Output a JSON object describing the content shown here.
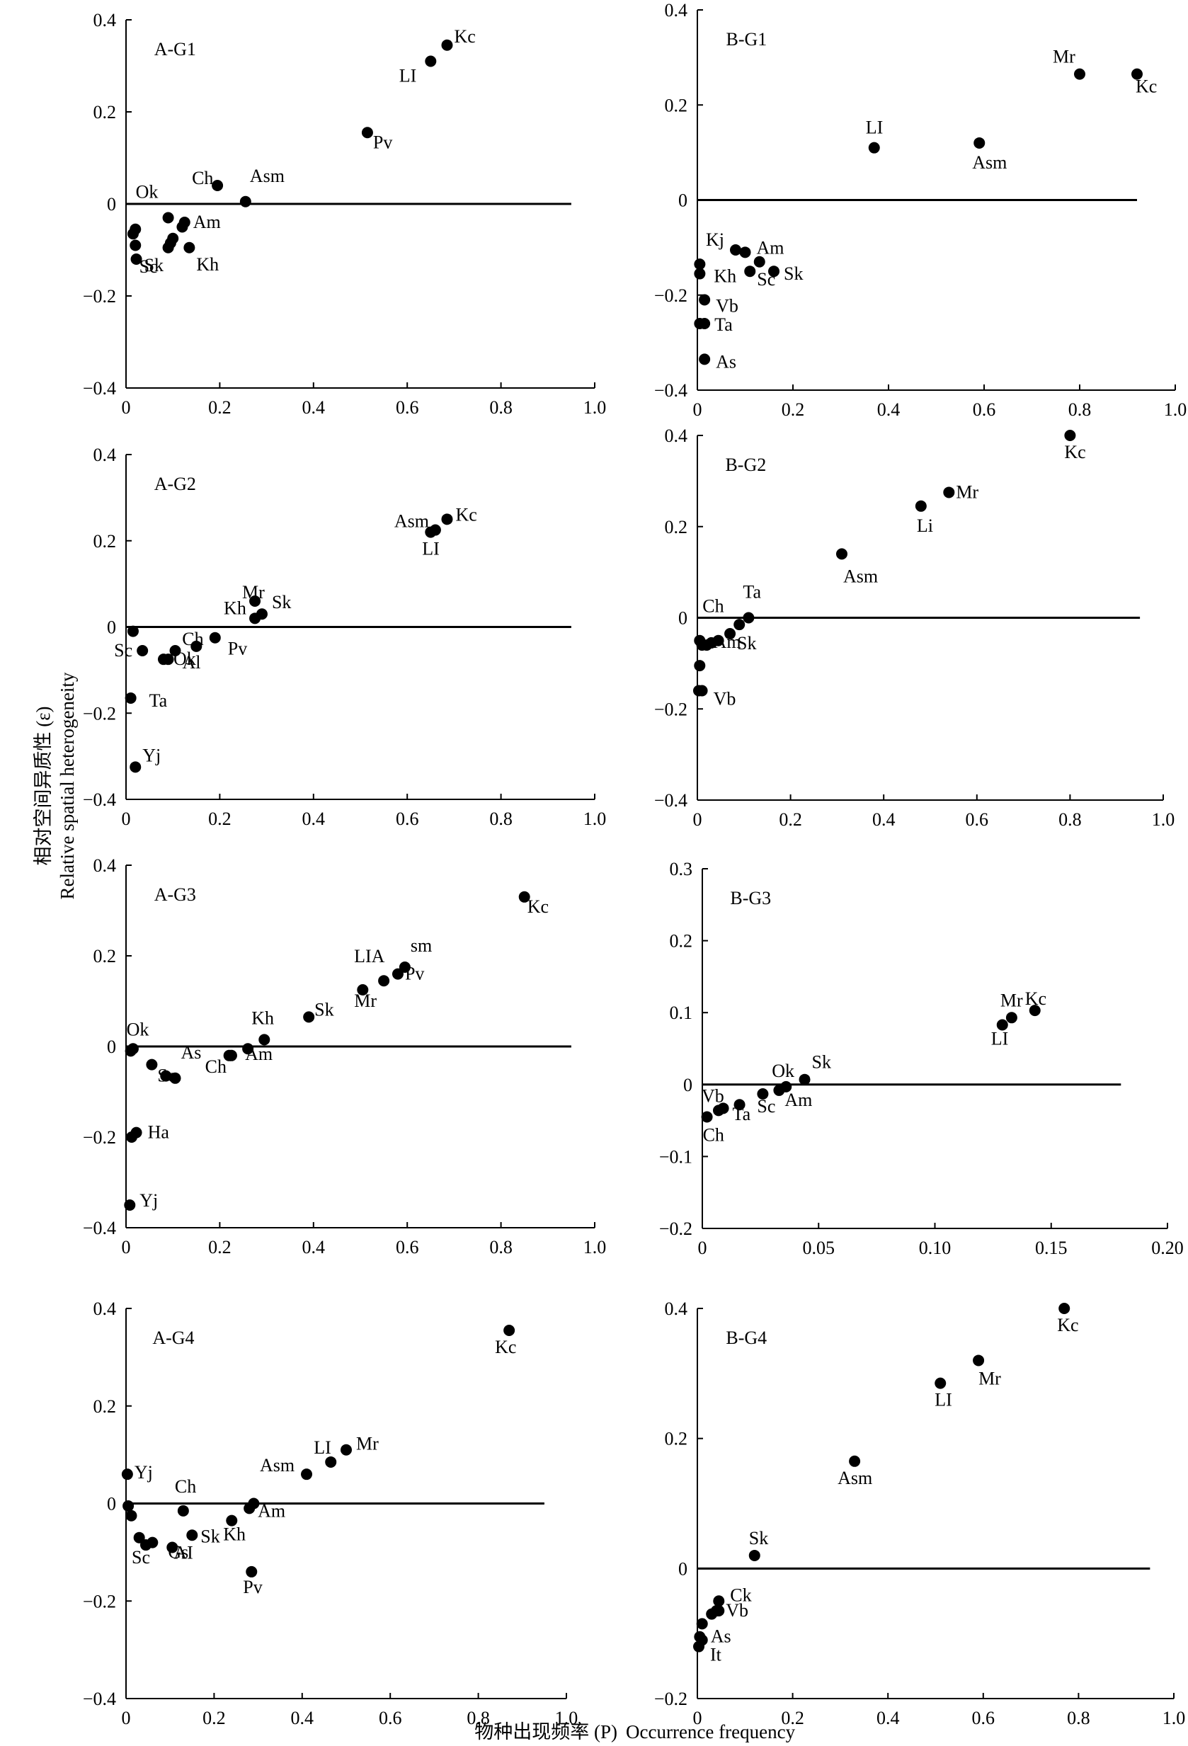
{
  "figure": {
    "ylabel_cn": "相对空间异质性 (ε)",
    "ylabel_en": "Relative spatial heterogeneity",
    "xlabel_cn": "物种出现频率 (P)",
    "xlabel_en": "Occurrence frequency"
  },
  "chart_data": [
    {
      "type": "scatter",
      "title": "A-G1",
      "xlim": [
        0,
        1.0
      ],
      "ylim": [
        -0.4,
        0.4
      ],
      "xticks": [
        0,
        0.2,
        0.4,
        0.6,
        0.8,
        1.0
      ],
      "yticks": [
        -0.4,
        -0.2,
        0,
        0.2,
        0.4
      ],
      "xtick_labels": [
        "0",
        "0.2",
        "0.4",
        "0.6",
        "0.8",
        "1.0"
      ],
      "ytick_labels": [
        "−0.4",
        "−0.2",
        "0",
        "0.2",
        "0.4"
      ],
      "refline": {
        "y": 0,
        "x0": 0,
        "x1": 0.95
      },
      "points": [
        {
          "x": 0.685,
          "y": 0.345,
          "label": "Kc"
        },
        {
          "x": 0.65,
          "y": 0.31,
          "label": "LI"
        },
        {
          "x": 0.515,
          "y": 0.155,
          "label": "Pv"
        },
        {
          "x": 0.195,
          "y": 0.04,
          "label": "Ch"
        },
        {
          "x": 0.255,
          "y": 0.005,
          "label": "Asm"
        },
        {
          "x": 0.09,
          "y": -0.03,
          "label": "Ok"
        },
        {
          "x": 0.125,
          "y": -0.04,
          "label": "Am"
        },
        {
          "x": 0.12,
          "y": -0.05
        },
        {
          "x": 0.02,
          "y": -0.055
        },
        {
          "x": 0.015,
          "y": -0.065
        },
        {
          "x": 0.1,
          "y": -0.075
        },
        {
          "x": 0.095,
          "y": -0.085
        },
        {
          "x": 0.02,
          "y": -0.09
        },
        {
          "x": 0.135,
          "y": -0.095,
          "label": "Kh"
        },
        {
          "x": 0.09,
          "y": -0.095,
          "label": "Sk"
        },
        {
          "x": 0.022,
          "y": -0.12,
          "label": "Sc"
        }
      ]
    },
    {
      "type": "scatter",
      "title": "B-G1",
      "xlim": [
        0,
        1.0
      ],
      "ylim": [
        -0.4,
        0.4
      ],
      "xticks": [
        0,
        0.2,
        0.4,
        0.6,
        0.8,
        1.0
      ],
      "yticks": [
        -0.4,
        -0.2,
        0,
        0.2,
        0.4
      ],
      "xtick_labels": [
        "0",
        "0.2",
        "0.4",
        "0.6",
        "0.8",
        "1.0"
      ],
      "ytick_labels": [
        "−0.4",
        "−0.2",
        "0",
        "0.2",
        "0.4"
      ],
      "refline": {
        "y": 0,
        "x0": 0,
        "x1": 0.92
      },
      "points": [
        {
          "x": 0.8,
          "y": 0.265,
          "label": "Mr"
        },
        {
          "x": 0.92,
          "y": 0.265,
          "label": "Kc"
        },
        {
          "x": 0.59,
          "y": 0.12,
          "label": "Asm"
        },
        {
          "x": 0.37,
          "y": 0.11,
          "label": "LI"
        },
        {
          "x": 0.08,
          "y": -0.105,
          "label": "Kj"
        },
        {
          "x": 0.1,
          "y": -0.11,
          "label": "Am"
        },
        {
          "x": 0.13,
          "y": -0.13
        },
        {
          "x": 0.005,
          "y": -0.135
        },
        {
          "x": 0.005,
          "y": -0.155,
          "label": "Kh"
        },
        {
          "x": 0.11,
          "y": -0.15,
          "label": "Sc"
        },
        {
          "x": 0.16,
          "y": -0.15,
          "label": "Sk"
        },
        {
          "x": 0.015,
          "y": -0.21,
          "label": "Vb"
        },
        {
          "x": 0.005,
          "y": -0.26
        },
        {
          "x": 0.015,
          "y": -0.26,
          "label": "Ta"
        },
        {
          "x": 0.015,
          "y": -0.335,
          "label": "As"
        }
      ]
    },
    {
      "type": "scatter",
      "title": "A-G2",
      "xlim": [
        0,
        1.0
      ],
      "ylim": [
        -0.4,
        0.4
      ],
      "xticks": [
        0,
        0.2,
        0.4,
        0.6,
        0.8,
        1.0
      ],
      "yticks": [
        -0.4,
        -0.2,
        0,
        0.2,
        0.4
      ],
      "xtick_labels": [
        "0",
        "0.2",
        "0.4",
        "0.6",
        "0.8",
        "1.0"
      ],
      "ytick_labels": [
        "−0.4",
        "−0.2",
        "0",
        "0.2",
        "0.4"
      ],
      "refline": {
        "y": 0,
        "x0": 0,
        "x1": 0.95
      },
      "points": [
        {
          "x": 0.685,
          "y": 0.25,
          "label": "Kc"
        },
        {
          "x": 0.66,
          "y": 0.225,
          "label": "Asm"
        },
        {
          "x": 0.65,
          "y": 0.22,
          "label": "LI"
        },
        {
          "x": 0.275,
          "y": 0.06,
          "label": "Mr"
        },
        {
          "x": 0.29,
          "y": 0.03,
          "label": "Sk"
        },
        {
          "x": 0.275,
          "y": 0.02,
          "label": "Kh"
        },
        {
          "x": 0.015,
          "y": -0.01
        },
        {
          "x": 0.19,
          "y": -0.025,
          "label": "Pv"
        },
        {
          "x": 0.15,
          "y": -0.045,
          "label": "Ch"
        },
        {
          "x": 0.105,
          "y": -0.055,
          "label": "Al"
        },
        {
          "x": 0.035,
          "y": -0.055,
          "label": "Sc"
        },
        {
          "x": 0.08,
          "y": -0.075,
          "label": "Ok"
        },
        {
          "x": 0.09,
          "y": -0.075
        },
        {
          "x": 0.01,
          "y": -0.165,
          "label": "Ta"
        },
        {
          "x": 0.02,
          "y": -0.325,
          "label": "Yj"
        }
      ]
    },
    {
      "type": "scatter",
      "title": "B-G2",
      "xlim": [
        0,
        1.0
      ],
      "ylim": [
        -0.4,
        0.4
      ],
      "xticks": [
        0,
        0.2,
        0.4,
        0.6,
        0.8,
        1.0
      ],
      "yticks": [
        -0.4,
        -0.2,
        0,
        0.2,
        0.4
      ],
      "xtick_labels": [
        "0",
        "0.2",
        "0.4",
        "0.6",
        "0.8",
        "1.0"
      ],
      "ytick_labels": [
        "−0.4",
        "−0.2",
        "0",
        "0.2",
        "0.4"
      ],
      "refline": {
        "y": 0,
        "x0": 0,
        "x1": 0.95
      },
      "points": [
        {
          "x": 0.8,
          "y": 0.4,
          "label": "Kc"
        },
        {
          "x": 0.54,
          "y": 0.275,
          "label": "Mr"
        },
        {
          "x": 0.48,
          "y": 0.245,
          "label": "Li"
        },
        {
          "x": 0.31,
          "y": 0.14,
          "label": "Asm"
        },
        {
          "x": 0.11,
          "y": 0.0,
          "label": "Ta"
        },
        {
          "x": 0.09,
          "y": -0.015
        },
        {
          "x": 0.07,
          "y": -0.035,
          "label": "Sk"
        },
        {
          "x": 0.045,
          "y": -0.05
        },
        {
          "x": 0.005,
          "y": -0.05,
          "label": "Ch"
        },
        {
          "x": 0.03,
          "y": -0.055
        },
        {
          "x": 0.02,
          "y": -0.06
        },
        {
          "x": 0.01,
          "y": -0.06,
          "label": "Am"
        },
        {
          "x": 0.005,
          "y": -0.105
        },
        {
          "x": 0.003,
          "y": -0.16
        },
        {
          "x": 0.01,
          "y": -0.16,
          "label": "Vb"
        }
      ]
    },
    {
      "type": "scatter",
      "title": "A-G3",
      "xlim": [
        0,
        1.0
      ],
      "ylim": [
        -0.4,
        0.4
      ],
      "xticks": [
        0,
        0.2,
        0.4,
        0.6,
        0.8,
        1.0
      ],
      "yticks": [
        -0.4,
        -0.2,
        0,
        0.2,
        0.4
      ],
      "xtick_labels": [
        "0",
        "0.2",
        "0.4",
        "0.6",
        "0.8",
        "1.0"
      ],
      "ytick_labels": [
        "−0.4",
        "−0.2",
        "0",
        "0.2",
        "0.4"
      ],
      "refline": {
        "y": 0,
        "x0": 0,
        "x1": 0.95
      },
      "points": [
        {
          "x": 0.85,
          "y": 0.33,
          "label": "Kc"
        },
        {
          "x": 0.595,
          "y": 0.175,
          "label": "sm"
        },
        {
          "x": 0.58,
          "y": 0.16,
          "label": "Pv"
        },
        {
          "x": 0.55,
          "y": 0.145,
          "label": "LIA"
        },
        {
          "x": 0.505,
          "y": 0.125,
          "label": "Mr"
        },
        {
          "x": 0.39,
          "y": 0.065,
          "label": "Sk"
        },
        {
          "x": 0.295,
          "y": 0.015,
          "label": "Kh"
        },
        {
          "x": 0.26,
          "y": -0.005,
          "label": "Am"
        },
        {
          "x": 0.015,
          "y": -0.005
        },
        {
          "x": 0.01,
          "y": -0.01,
          "label": "Ok"
        },
        {
          "x": 0.22,
          "y": -0.02,
          "label": "Ch"
        },
        {
          "x": 0.225,
          "y": -0.02
        },
        {
          "x": 0.055,
          "y": -0.04,
          "label": "Sc"
        },
        {
          "x": 0.085,
          "y": -0.065
        },
        {
          "x": 0.105,
          "y": -0.07,
          "label": "As"
        },
        {
          "x": 0.022,
          "y": -0.19,
          "label": "Ha"
        },
        {
          "x": 0.012,
          "y": -0.2
        },
        {
          "x": 0.008,
          "y": -0.35,
          "label": "Yj"
        }
      ]
    },
    {
      "type": "scatter",
      "title": "B-G3",
      "xlim": [
        0,
        0.2
      ],
      "ylim": [
        -0.2,
        0.3
      ],
      "xticks": [
        0,
        0.05,
        0.1,
        0.15,
        0.2
      ],
      "yticks": [
        -0.2,
        -0.1,
        0,
        0.1,
        0.2,
        0.3
      ],
      "xtick_labels": [
        "0",
        "0.05",
        "0.10",
        "0.15",
        "0.20"
      ],
      "ytick_labels": [
        "−0.2",
        "−0.1",
        "0",
        "0.1",
        "0.2",
        "0.3"
      ],
      "refline": {
        "y": 0,
        "x0": 0,
        "x1": 0.18
      },
      "points": [
        {
          "x": 0.143,
          "y": 0.103,
          "label": "Kc"
        },
        {
          "x": 0.133,
          "y": 0.093,
          "label": "Mr"
        },
        {
          "x": 0.129,
          "y": 0.083,
          "label": "LI"
        },
        {
          "x": 0.044,
          "y": 0.007,
          "label": "Sk"
        },
        {
          "x": 0.036,
          "y": -0.003,
          "label": "Ok"
        },
        {
          "x": 0.033,
          "y": -0.008,
          "label": "Am"
        },
        {
          "x": 0.026,
          "y": -0.013,
          "label": "Sc"
        },
        {
          "x": 0.016,
          "y": -0.028,
          "label": "Ta"
        },
        {
          "x": 0.009,
          "y": -0.033
        },
        {
          "x": 0.007,
          "y": -0.036,
          "label": "Vb"
        },
        {
          "x": 0.002,
          "y": -0.045,
          "label": "Ch"
        }
      ]
    },
    {
      "type": "scatter",
      "title": "A-G4",
      "xlim": [
        0,
        1.0
      ],
      "ylim": [
        -0.4,
        0.4
      ],
      "xticks": [
        0,
        0.2,
        0.4,
        0.6,
        0.8,
        1.0
      ],
      "yticks": [
        -0.4,
        -0.2,
        0,
        0.2,
        0.4
      ],
      "xtick_labels": [
        "0",
        "0.2",
        "0.4",
        "0.6",
        "0.8",
        "1.0"
      ],
      "ytick_labels": [
        "−0.4",
        "−0.2",
        "0",
        "0.2",
        "0.4"
      ],
      "refline": {
        "y": 0,
        "x0": 0,
        "x1": 0.95
      },
      "points": [
        {
          "x": 0.87,
          "y": 0.355,
          "label": "Kc"
        },
        {
          "x": 0.5,
          "y": 0.11,
          "label": "Mr"
        },
        {
          "x": 0.465,
          "y": 0.085,
          "label": "LI"
        },
        {
          "x": 0.41,
          "y": 0.06,
          "label": "Asm"
        },
        {
          "x": 0.003,
          "y": 0.06,
          "label": "Yj"
        },
        {
          "x": 0.29,
          "y": 0.0
        },
        {
          "x": 0.005,
          "y": -0.005
        },
        {
          "x": 0.28,
          "y": -0.01,
          "label": "Am"
        },
        {
          "x": 0.13,
          "y": -0.015,
          "label": "Ch"
        },
        {
          "x": 0.012,
          "y": -0.025
        },
        {
          "x": 0.24,
          "y": -0.035,
          "label": "Kh"
        },
        {
          "x": 0.15,
          "y": -0.065,
          "label": "Sk"
        },
        {
          "x": 0.03,
          "y": -0.07
        },
        {
          "x": 0.06,
          "y": -0.08,
          "label": "Gs"
        },
        {
          "x": 0.045,
          "y": -0.085,
          "label": "Sc"
        },
        {
          "x": 0.105,
          "y": -0.09,
          "label": "AI"
        },
        {
          "x": 0.285,
          "y": -0.14,
          "label": "Pv"
        }
      ]
    },
    {
      "type": "scatter",
      "title": "B-G4",
      "xlim": [
        0,
        1.0
      ],
      "ylim": [
        -0.2,
        0.4
      ],
      "xticks": [
        0,
        0.2,
        0.4,
        0.6,
        0.8,
        1.0
      ],
      "yticks": [
        -0.2,
        0,
        0.2,
        0.4
      ],
      "xtick_labels": [
        "0",
        "0.2",
        "0.4",
        "0.6",
        "0.8",
        "1.0"
      ],
      "ytick_labels": [
        "−0.2",
        "0",
        "0.2",
        "0.4"
      ],
      "refline": {
        "y": 0,
        "x0": 0,
        "x1": 0.95
      },
      "points": [
        {
          "x": 0.77,
          "y": 0.4,
          "label": "Kc"
        },
        {
          "x": 0.59,
          "y": 0.32,
          "label": "Mr"
        },
        {
          "x": 0.51,
          "y": 0.285,
          "label": "LI"
        },
        {
          "x": 0.33,
          "y": 0.165,
          "label": "Asm"
        },
        {
          "x": 0.12,
          "y": 0.02,
          "label": "Sk"
        },
        {
          "x": 0.045,
          "y": -0.05,
          "label": "Ck"
        },
        {
          "x": 0.04,
          "y": -0.065
        },
        {
          "x": 0.03,
          "y": -0.07
        },
        {
          "x": 0.01,
          "y": -0.085,
          "label": "As"
        },
        {
          "x": 0.045,
          "y": -0.065,
          "label": "Vb"
        },
        {
          "x": 0.005,
          "y": -0.105
        },
        {
          "x": 0.01,
          "y": -0.11
        },
        {
          "x": 0.003,
          "y": -0.12,
          "label": "It"
        }
      ]
    }
  ]
}
